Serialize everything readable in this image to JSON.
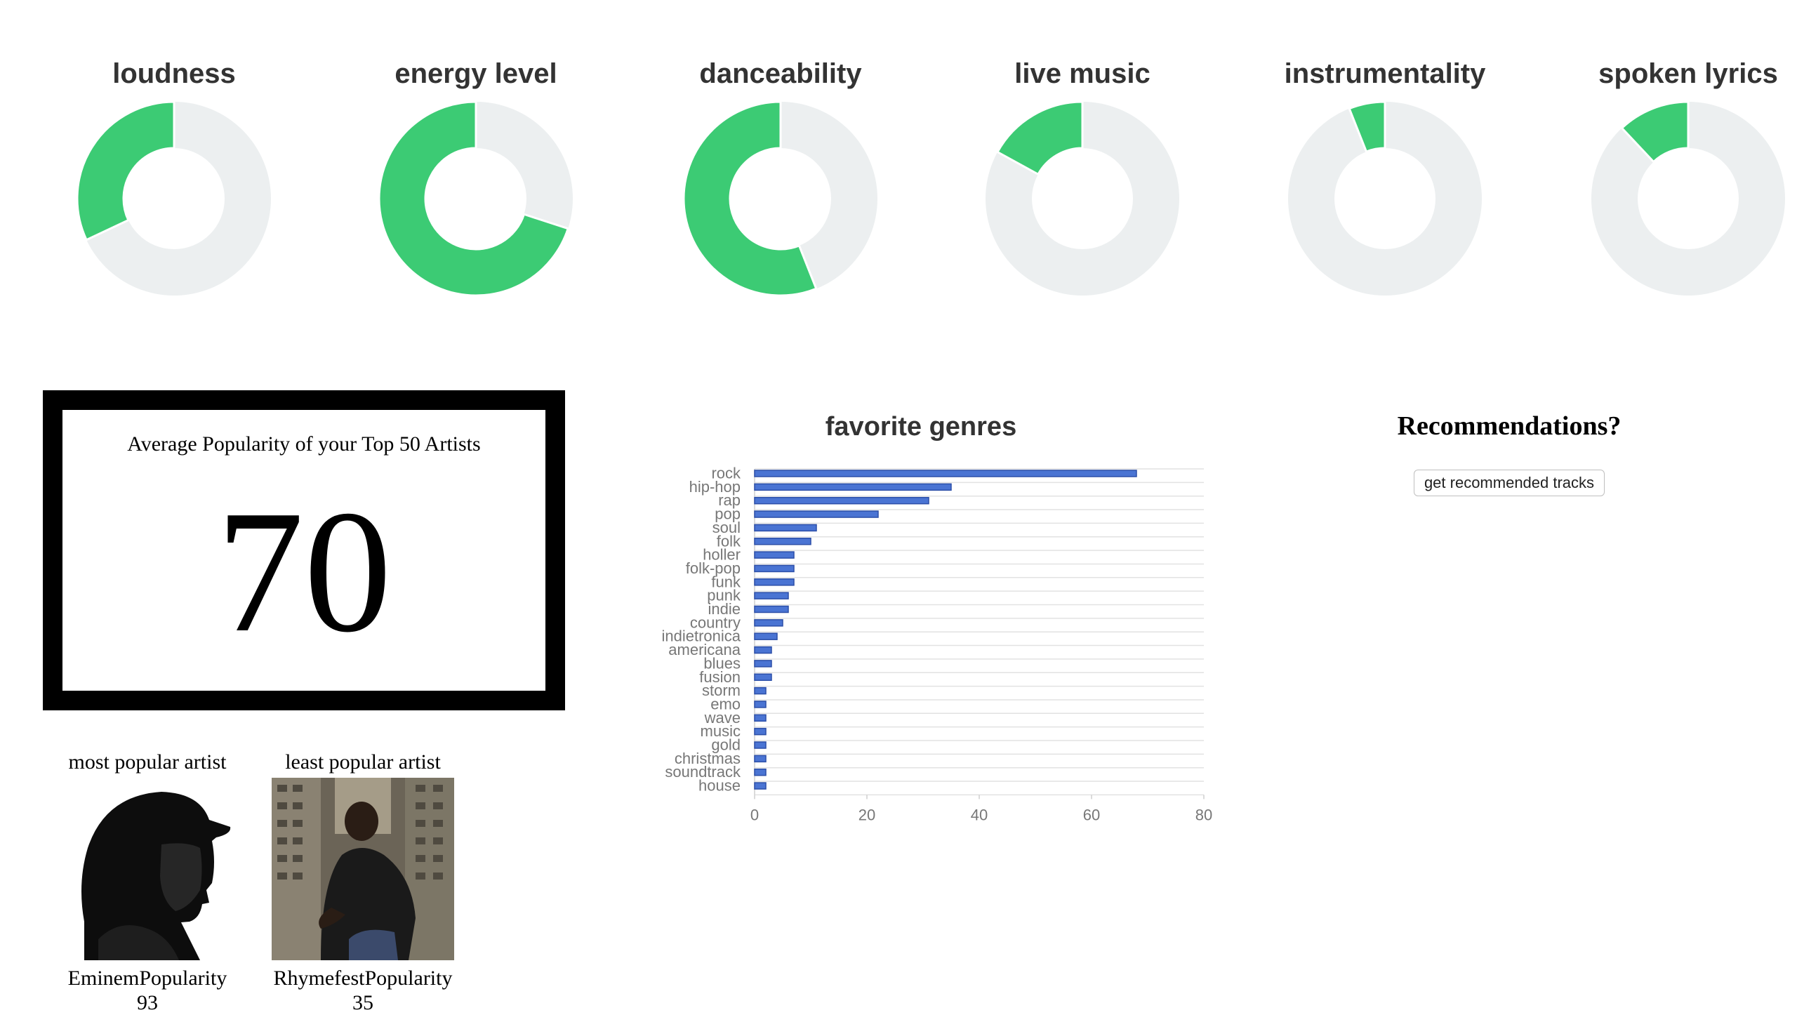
{
  "audio_features": {
    "colors": {
      "filled": "#3ccb74",
      "empty": "#eceff0"
    },
    "items": [
      {
        "label": "loudness",
        "value": 0.32
      },
      {
        "label": "energy level",
        "value": 0.7
      },
      {
        "label": "danceability",
        "value": 0.56
      },
      {
        "label": "live music",
        "value": 0.17
      },
      {
        "label": "instrumentality",
        "value": 0.06
      },
      {
        "label": "spoken lyrics",
        "value": 0.12
      }
    ]
  },
  "popularity": {
    "title": "Average Popularity of your Top 50 Artists",
    "value": "70"
  },
  "most_popular": {
    "heading": "most popular artist",
    "name": "Eminem",
    "popularity_label": "Popularity",
    "popularity": "93",
    "image_icon": "artist-photo-hooded-silhouette"
  },
  "least_popular": {
    "heading": "least popular artist",
    "name": "Rhymefest",
    "popularity_label": "Popularity",
    "popularity": "35",
    "image_icon": "artist-photo-crouching-in-courtyard"
  },
  "chart_data": {
    "type": "bar",
    "orientation": "horizontal",
    "title": "favorite genres",
    "categories": [
      "rock",
      "hip-hop",
      "rap",
      "pop",
      "soul",
      "folk",
      "holler",
      "folk-pop",
      "funk",
      "punk",
      "indie",
      "country",
      "indietronica",
      "americana",
      "blues",
      "fusion",
      "storm",
      "emo",
      "wave",
      "music",
      "gold",
      "christmas",
      "soundtrack",
      "house"
    ],
    "values": [
      68,
      35,
      31,
      22,
      11,
      10,
      7,
      7,
      7,
      6,
      6,
      5,
      4,
      3,
      3,
      3,
      2,
      2,
      2,
      2,
      2,
      2,
      2,
      2
    ],
    "xlim": [
      0,
      80
    ],
    "xticks": [
      "0",
      "20",
      "40",
      "60",
      "80"
    ],
    "grid": true,
    "bar_color": "#4a74d3"
  },
  "recommendations": {
    "title": "Recommendations?",
    "button_label": "get recommended tracks"
  }
}
